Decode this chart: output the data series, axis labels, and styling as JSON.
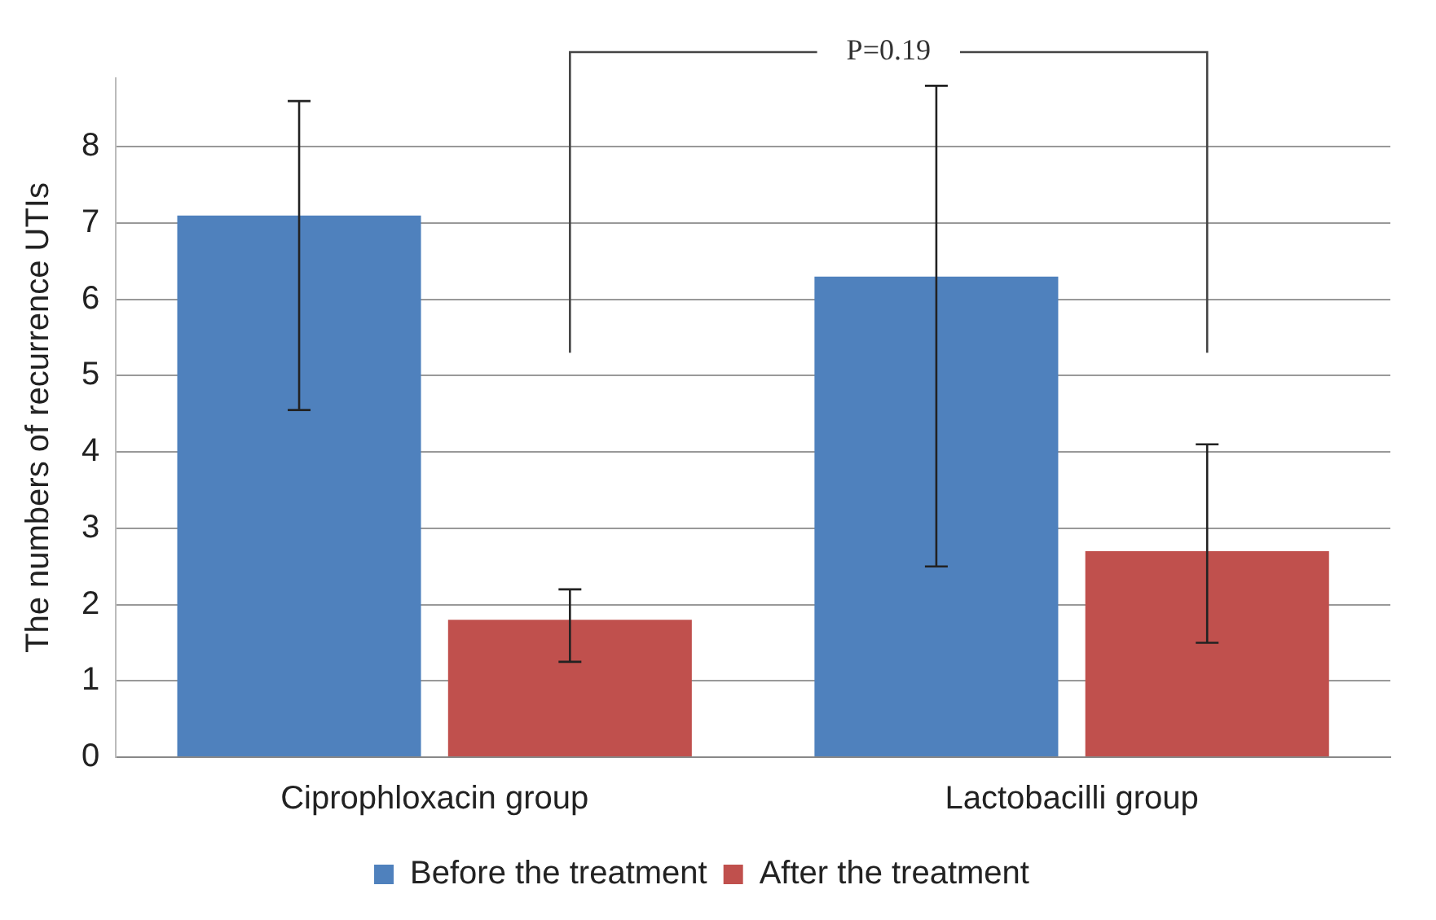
{
  "chart_data": {
    "type": "bar",
    "categories": [
      "Ciprophloxacin group",
      "Lactobacilli group"
    ],
    "series": [
      {
        "name": "Before the treatment",
        "color": "#4f81bd",
        "values": [
          7.1,
          6.3
        ],
        "errors": [
          [
            4.55,
            8.6
          ],
          [
            2.5,
            8.8
          ]
        ]
      },
      {
        "name": "After the treatment",
        "color": "#c0504d",
        "values": [
          1.8,
          2.7
        ],
        "errors": [
          [
            1.25,
            2.2
          ],
          [
            1.5,
            4.1
          ]
        ]
      }
    ],
    "ylabel": "The numbers of recurrence UTIs",
    "ylim": [
      0,
      8.9
    ],
    "yticks": [
      0,
      1,
      2,
      3,
      4,
      5,
      6,
      7,
      8
    ],
    "grid": "y",
    "legend": "bottom",
    "annotations": [
      "P=0.19"
    ]
  }
}
